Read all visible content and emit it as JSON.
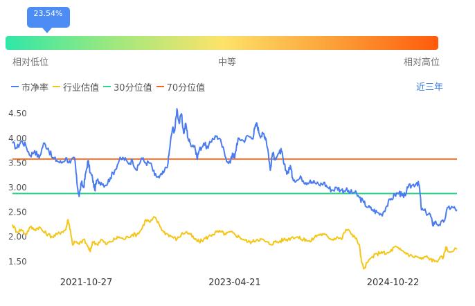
{
  "gauge": {
    "percentile_label": "23.54%",
    "percentile_value": 0.2354,
    "low_label": "相对低位",
    "mid_label": "中等",
    "high_label": "相对高位"
  },
  "legend": {
    "items": [
      {
        "label": "市净率",
        "color": "#4a7cf0"
      },
      {
        "label": "行业估值",
        "color": "#f5c518"
      },
      {
        "label": "30分位值",
        "color": "#2bd58a"
      },
      {
        "label": "70分位值",
        "color": "#f0641e"
      }
    ],
    "range_button": "近三年"
  },
  "chart_data": {
    "type": "line",
    "y_ticks": [
      "4.50",
      "4.00",
      "3.50",
      "3.00",
      "2.50",
      "2.00",
      "1.50"
    ],
    "ylim": [
      1.3,
      4.7
    ],
    "x_ticks": [
      "2021-10-27",
      "2023-04-21",
      "2024-10-22"
    ],
    "x_tick_fractions": [
      0.166,
      0.5,
      0.856
    ],
    "reference_lines": [
      {
        "name": "70分位值",
        "value": 3.58,
        "color": "#f0641e"
      },
      {
        "name": "30分位值",
        "value": 2.88,
        "color": "#2bd58a"
      }
    ],
    "series": [
      {
        "name": "市净率",
        "color": "#4a7cf0",
        "points": [
          [
            0.0,
            3.9
          ],
          [
            0.01,
            3.8
          ],
          [
            0.02,
            3.95
          ],
          [
            0.03,
            3.85
          ],
          [
            0.04,
            3.65
          ],
          [
            0.05,
            3.75
          ],
          [
            0.06,
            3.6
          ],
          [
            0.07,
            3.9
          ],
          [
            0.08,
            3.8
          ],
          [
            0.09,
            3.6
          ],
          [
            0.1,
            3.55
          ],
          [
            0.11,
            3.5
          ],
          [
            0.12,
            3.6
          ],
          [
            0.13,
            3.5
          ],
          [
            0.14,
            3.6
          ],
          [
            0.145,
            3.1
          ],
          [
            0.15,
            2.82
          ],
          [
            0.155,
            3.1
          ],
          [
            0.16,
            3.0
          ],
          [
            0.165,
            3.3
          ],
          [
            0.17,
            3.55
          ],
          [
            0.175,
            3.3
          ],
          [
            0.18,
            3.2
          ],
          [
            0.185,
            2.95
          ],
          [
            0.19,
            3.15
          ],
          [
            0.2,
            3.1
          ],
          [
            0.21,
            3.05
          ],
          [
            0.22,
            3.2
          ],
          [
            0.23,
            3.35
          ],
          [
            0.24,
            3.55
          ],
          [
            0.25,
            3.6
          ],
          [
            0.26,
            3.5
          ],
          [
            0.27,
            3.55
          ],
          [
            0.28,
            3.35
          ],
          [
            0.29,
            3.6
          ],
          [
            0.3,
            3.5
          ],
          [
            0.31,
            3.5
          ],
          [
            0.32,
            3.25
          ],
          [
            0.33,
            3.2
          ],
          [
            0.34,
            3.3
          ],
          [
            0.35,
            3.5
          ],
          [
            0.355,
            3.9
          ],
          [
            0.36,
            4.2
          ],
          [
            0.365,
            4.15
          ],
          [
            0.37,
            4.6
          ],
          [
            0.375,
            4.3
          ],
          [
            0.38,
            4.5
          ],
          [
            0.385,
            4.1
          ],
          [
            0.39,
            4.3
          ],
          [
            0.395,
            4.0
          ],
          [
            0.4,
            3.9
          ],
          [
            0.41,
            3.85
          ],
          [
            0.415,
            3.6
          ],
          [
            0.42,
            3.75
          ],
          [
            0.43,
            3.9
          ],
          [
            0.44,
            3.8
          ],
          [
            0.45,
            4.0
          ],
          [
            0.46,
            4.05
          ],
          [
            0.47,
            3.9
          ],
          [
            0.48,
            3.6
          ],
          [
            0.49,
            3.5
          ],
          [
            0.495,
            3.7
          ],
          [
            0.5,
            3.6
          ],
          [
            0.505,
            3.9
          ],
          [
            0.51,
            4.0
          ],
          [
            0.52,
            3.95
          ],
          [
            0.53,
            4.05
          ],
          [
            0.54,
            4.0
          ],
          [
            0.545,
            4.2
          ],
          [
            0.55,
            4.3
          ],
          [
            0.555,
            4.1
          ],
          [
            0.56,
            4.05
          ],
          [
            0.565,
            4.1
          ],
          [
            0.57,
            4.0
          ],
          [
            0.575,
            3.75
          ],
          [
            0.58,
            3.35
          ],
          [
            0.585,
            3.7
          ],
          [
            0.59,
            3.6
          ],
          [
            0.6,
            3.7
          ],
          [
            0.605,
            3.75
          ],
          [
            0.61,
            3.5
          ],
          [
            0.615,
            3.35
          ],
          [
            0.62,
            3.3
          ],
          [
            0.625,
            3.45
          ],
          [
            0.63,
            3.2
          ],
          [
            0.64,
            3.15
          ],
          [
            0.65,
            3.2
          ],
          [
            0.66,
            3.1
          ],
          [
            0.67,
            3.15
          ],
          [
            0.68,
            3.1
          ],
          [
            0.69,
            3.05
          ],
          [
            0.7,
            3.1
          ],
          [
            0.71,
            3.0
          ],
          [
            0.72,
            2.95
          ],
          [
            0.73,
            3.0
          ],
          [
            0.74,
            2.95
          ],
          [
            0.75,
            2.95
          ],
          [
            0.76,
            2.9
          ],
          [
            0.77,
            2.9
          ],
          [
            0.78,
            2.8
          ],
          [
            0.79,
            2.7
          ],
          [
            0.8,
            2.6
          ],
          [
            0.81,
            2.55
          ],
          [
            0.82,
            2.5
          ],
          [
            0.83,
            2.45
          ],
          [
            0.84,
            2.6
          ],
          [
            0.85,
            2.75
          ],
          [
            0.86,
            2.85
          ],
          [
            0.87,
            2.9
          ],
          [
            0.875,
            2.85
          ],
          [
            0.88,
            2.8
          ],
          [
            0.89,
            3.0
          ],
          [
            0.9,
            3.05
          ],
          [
            0.91,
            3.1
          ],
          [
            0.915,
            3.05
          ],
          [
            0.92,
            2.55
          ],
          [
            0.93,
            2.5
          ],
          [
            0.94,
            2.45
          ],
          [
            0.945,
            2.25
          ],
          [
            0.95,
            2.3
          ],
          [
            0.96,
            2.25
          ],
          [
            0.97,
            2.3
          ],
          [
            0.98,
            2.6
          ],
          [
            0.99,
            2.6
          ],
          [
            1.0,
            2.55
          ]
        ],
        "tail": [
          [
            0.0,
            2.55
          ],
          [
            0.04,
            2.3
          ],
          [
            0.08,
            2.5
          ],
          [
            0.12,
            2.45
          ],
          [
            0.16,
            2.55
          ],
          [
            0.18,
            2.9
          ],
          [
            0.2,
            2.7
          ],
          [
            0.24,
            2.7
          ]
        ]
      },
      {
        "name": "行业估值",
        "color": "#f5c518",
        "points": [
          [
            0.0,
            2.25
          ],
          [
            0.01,
            2.1
          ],
          [
            0.02,
            2.15
          ],
          [
            0.03,
            2.05
          ],
          [
            0.04,
            2.2
          ],
          [
            0.05,
            2.15
          ],
          [
            0.06,
            2.2
          ],
          [
            0.07,
            2.1
          ],
          [
            0.08,
            2.05
          ],
          [
            0.09,
            2.0
          ],
          [
            0.1,
            2.05
          ],
          [
            0.11,
            2.1
          ],
          [
            0.12,
            2.15
          ],
          [
            0.125,
            2.35
          ],
          [
            0.13,
            2.15
          ],
          [
            0.135,
            1.85
          ],
          [
            0.14,
            1.9
          ],
          [
            0.15,
            1.85
          ],
          [
            0.16,
            1.95
          ],
          [
            0.17,
            1.8
          ],
          [
            0.175,
            1.7
          ],
          [
            0.18,
            1.9
          ],
          [
            0.19,
            1.85
          ],
          [
            0.2,
            1.95
          ],
          [
            0.21,
            1.85
          ],
          [
            0.22,
            1.9
          ],
          [
            0.23,
            1.95
          ],
          [
            0.24,
            2.0
          ],
          [
            0.25,
            1.95
          ],
          [
            0.26,
            2.0
          ],
          [
            0.27,
            2.05
          ],
          [
            0.28,
            2.05
          ],
          [
            0.29,
            2.15
          ],
          [
            0.3,
            2.35
          ],
          [
            0.31,
            2.3
          ],
          [
            0.32,
            2.4
          ],
          [
            0.33,
            2.25
          ],
          [
            0.34,
            2.1
          ],
          [
            0.35,
            2.05
          ],
          [
            0.36,
            2.0
          ],
          [
            0.37,
            1.95
          ],
          [
            0.38,
            2.05
          ],
          [
            0.39,
            2.1
          ],
          [
            0.4,
            2.05
          ],
          [
            0.41,
            1.95
          ],
          [
            0.42,
            1.9
          ],
          [
            0.43,
            1.95
          ],
          [
            0.44,
            2.0
          ],
          [
            0.45,
            2.05
          ],
          [
            0.46,
            2.1
          ],
          [
            0.47,
            2.1
          ],
          [
            0.48,
            2.05
          ],
          [
            0.49,
            2.1
          ],
          [
            0.5,
            2.05
          ],
          [
            0.51,
            2.0
          ],
          [
            0.52,
            1.95
          ],
          [
            0.53,
            1.9
          ],
          [
            0.54,
            1.9
          ],
          [
            0.55,
            1.95
          ],
          [
            0.56,
            1.95
          ],
          [
            0.57,
            1.9
          ],
          [
            0.58,
            1.85
          ],
          [
            0.59,
            1.9
          ],
          [
            0.6,
            1.9
          ],
          [
            0.61,
            1.95
          ],
          [
            0.62,
            1.95
          ],
          [
            0.63,
            2.0
          ],
          [
            0.64,
            2.0
          ],
          [
            0.65,
            1.95
          ],
          [
            0.66,
            1.95
          ],
          [
            0.67,
            1.9
          ],
          [
            0.68,
            2.0
          ],
          [
            0.69,
            2.05
          ],
          [
            0.7,
            2.05
          ],
          [
            0.71,
            2.0
          ],
          [
            0.72,
            1.95
          ],
          [
            0.73,
            2.0
          ],
          [
            0.74,
            1.95
          ],
          [
            0.75,
            2.15
          ],
          [
            0.76,
            2.1
          ],
          [
            0.77,
            2.0
          ],
          [
            0.78,
            1.85
          ],
          [
            0.785,
            1.5
          ],
          [
            0.79,
            1.35
          ],
          [
            0.8,
            1.5
          ],
          [
            0.81,
            1.6
          ],
          [
            0.82,
            1.65
          ],
          [
            0.83,
            1.7
          ],
          [
            0.84,
            1.65
          ],
          [
            0.85,
            1.7
          ],
          [
            0.86,
            1.8
          ],
          [
            0.87,
            1.75
          ],
          [
            0.88,
            1.7
          ],
          [
            0.89,
            1.65
          ],
          [
            0.9,
            1.6
          ],
          [
            0.91,
            1.6
          ],
          [
            0.92,
            1.55
          ],
          [
            0.93,
            1.6
          ],
          [
            0.94,
            1.55
          ],
          [
            0.95,
            1.5
          ],
          [
            0.96,
            1.55
          ],
          [
            0.97,
            1.6
          ],
          [
            0.975,
            1.8
          ],
          [
            0.98,
            1.7
          ],
          [
            1.0,
            1.75
          ]
        ]
      }
    ]
  }
}
